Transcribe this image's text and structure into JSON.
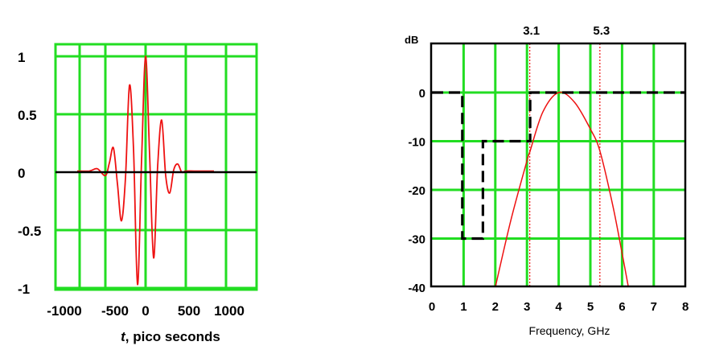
{
  "chart_data": [
    {
      "type": "line",
      "xlabel_italic": "t",
      "xlabel_rest": ", pico seconds",
      "xlim": [
        -1000,
        1000
      ],
      "ylim": [
        -1,
        1
      ],
      "grid": true,
      "x_ticks": [
        -1000,
        -500,
        0,
        500,
        1000
      ],
      "x_tick_labels": [
        "-1000",
        "-500",
        "0",
        "500",
        "1000"
      ],
      "y_ticks": [
        1,
        0.5,
        0,
        -0.5,
        -1
      ],
      "y_tick_labels": [
        "1",
        "0.5",
        "0",
        "-0.5",
        "-1"
      ],
      "colors": {
        "grid": "#22dd22",
        "signal": "#ee1111",
        "axis": "#000000"
      },
      "series": [
        {
          "x": [
            -850,
            -700,
            -600,
            -500,
            -450,
            -400,
            -350,
            -300,
            -250,
            -200,
            -150,
            -100,
            -50,
            0,
            50,
            100,
            150,
            200,
            250,
            300,
            350,
            400,
            450,
            500,
            600,
            700,
            850
          ],
          "y": [
            0.01,
            0.01,
            0.03,
            -0.03,
            0.08,
            0.21,
            -0.1,
            -0.42,
            -0.05,
            0.75,
            0.2,
            -0.97,
            0.1,
            1.0,
            0.15,
            -0.74,
            0.05,
            0.45,
            -0.03,
            -0.18,
            0.02,
            0.07,
            0.0,
            0.01,
            0.01,
            0.01,
            0.01
          ]
        }
      ]
    },
    {
      "type": "line",
      "xlabel": "Frequency, GHz",
      "ylabel": "dB",
      "xlim": [
        0,
        8
      ],
      "ylim": [
        -40,
        0
      ],
      "grid": true,
      "x_ticks": [
        0,
        1,
        2,
        3,
        4,
        5,
        6,
        7,
        8
      ],
      "x_tick_labels": [
        "0",
        "1",
        "2",
        "3",
        "4",
        "5",
        "6",
        "7",
        "8"
      ],
      "y_ticks": [
        0,
        -10,
        -20,
        -30,
        -40
      ],
      "y_tick_labels": [
        "0",
        "-10",
        "-20",
        "-30",
        "-40"
      ],
      "annotations": [
        {
          "x": 3.1,
          "label": "3.1"
        },
        {
          "x": 5.3,
          "label": "5.3"
        }
      ],
      "colors": {
        "grid": "#22dd22",
        "spectrum": "#ee1111",
        "mask": "#000000",
        "marker": "#ee1111"
      },
      "series": [
        {
          "style": "solid-red",
          "x": [
            2.0,
            2.5,
            3.0,
            3.1,
            3.5,
            4.0,
            4.5,
            5.0,
            5.3,
            5.7,
            6.0,
            6.2
          ],
          "y": [
            -40,
            -26,
            -14,
            -12,
            -4,
            0,
            -2,
            -7.5,
            -12,
            -23,
            -33,
            -40
          ]
        },
        {
          "style": "dashed-mask",
          "x": [
            0.0,
            0.96,
            0.96,
            1.61,
            1.61,
            1.99,
            1.99,
            3.1,
            3.1,
            10.6
          ],
          "y": [
            0,
            0,
            -30,
            -30,
            -10,
            -10,
            -10,
            -10,
            0,
            0
          ]
        }
      ]
    }
  ]
}
